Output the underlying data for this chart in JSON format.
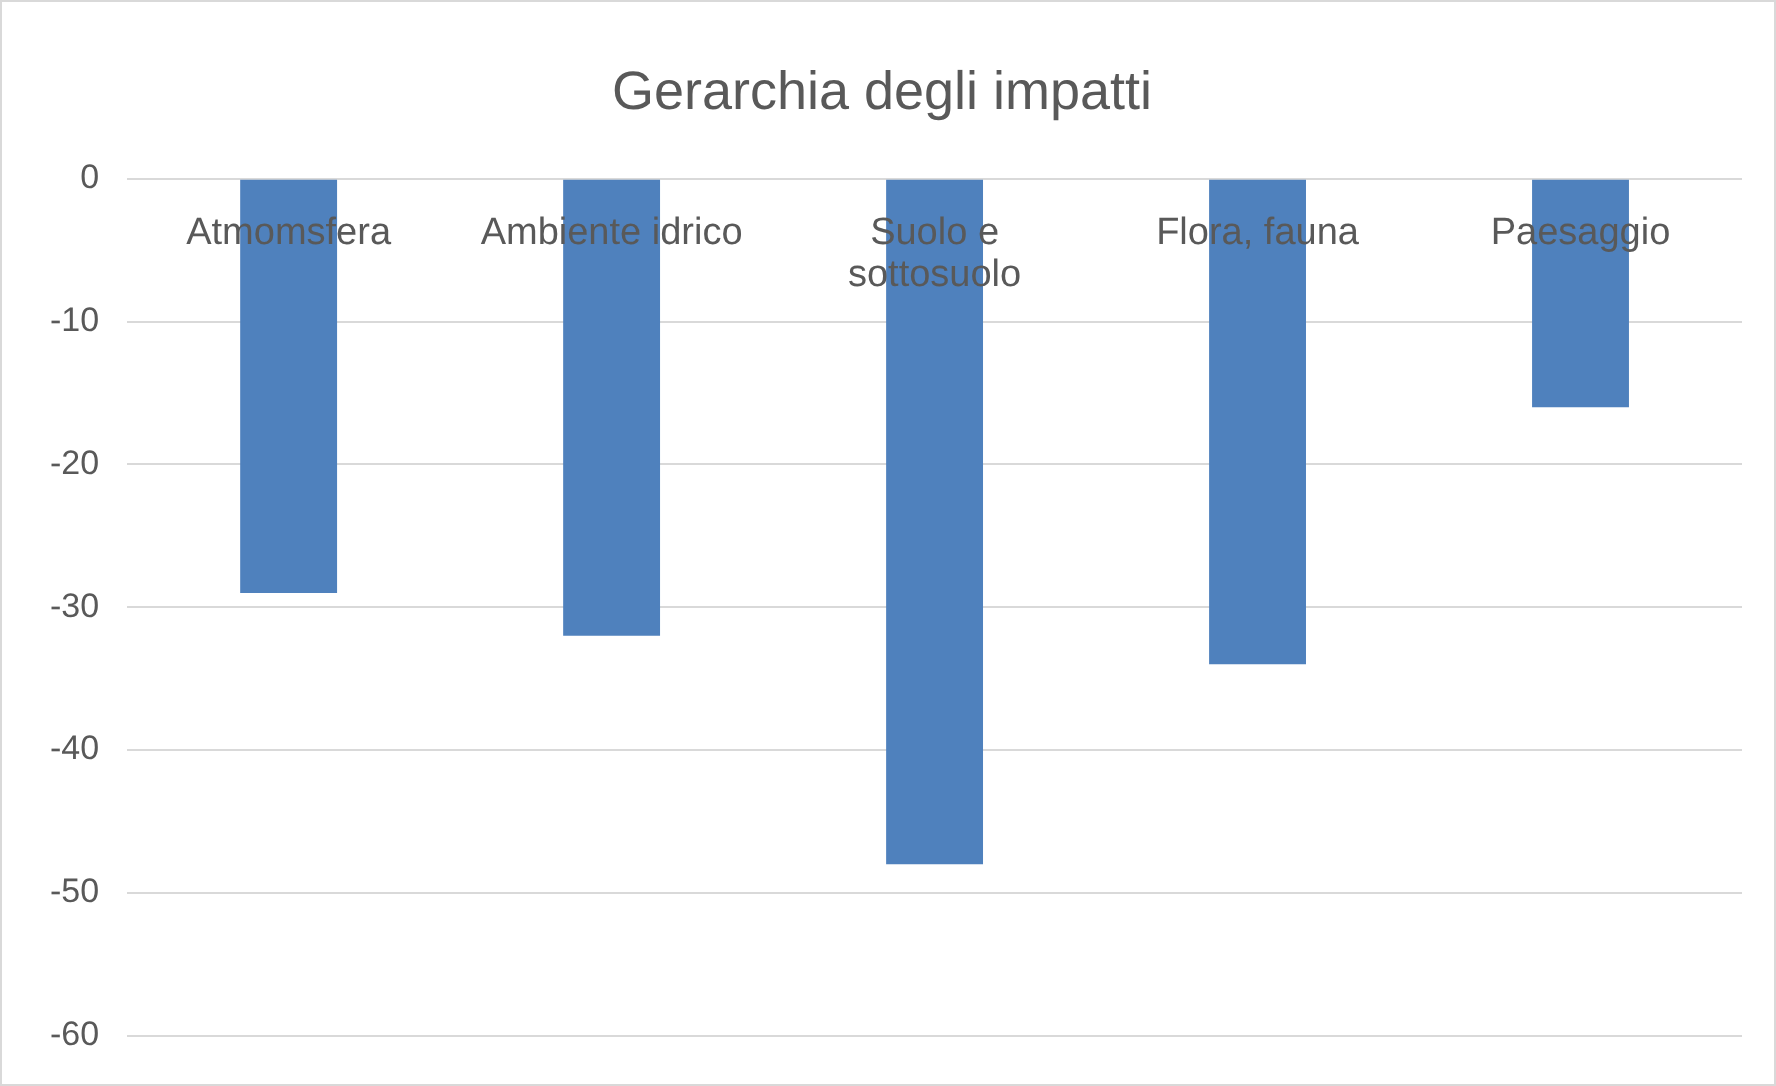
{
  "chart_data": {
    "type": "bar",
    "title": "Gerarchia degli impatti",
    "categories": [
      "Atmomsfera",
      "Ambiente idrico",
      "Suolo e sottosuolo",
      "Flora, fauna",
      "Paesaggio"
    ],
    "values": [
      -29,
      -32,
      -48,
      -34,
      -16
    ],
    "color": "#4f81bd",
    "ylim": [
      -60,
      0
    ],
    "yticks": [
      0,
      -10,
      -20,
      -30,
      -40,
      -50,
      -60
    ],
    "grid": "y",
    "legend": false
  }
}
